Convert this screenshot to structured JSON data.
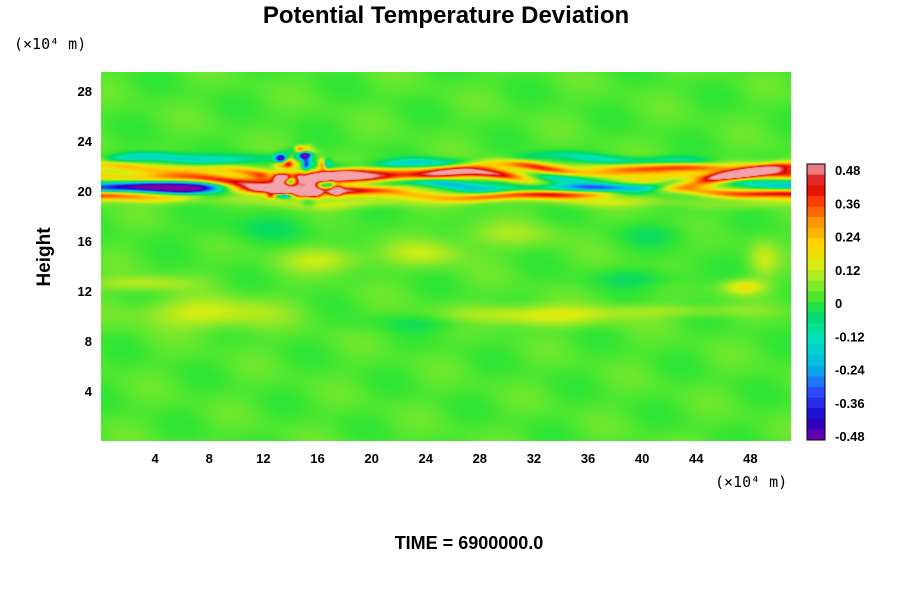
{
  "chart_data": {
    "type": "heatmap",
    "title": "Potential Temperature Deviation",
    "ylabel": "Height",
    "y_unit": "(×10⁴ m)",
    "x_unit": "(×10⁴ m)",
    "time_label": "TIME = 6900000.0",
    "x_ticks": [
      "4",
      "8",
      "12",
      "16",
      "20",
      "24",
      "28",
      "32",
      "36",
      "40",
      "44",
      "48"
    ],
    "y_ticks": [
      "4",
      "8",
      "12",
      "16",
      "20",
      "24",
      "28"
    ],
    "xlim": [
      0,
      51
    ],
    "ylim": [
      0,
      29.5
    ],
    "colorbar": {
      "ticks": [
        "0.48",
        "0.36",
        "0.24",
        "0.12",
        "0",
        "-0.12",
        "-0.24",
        "-0.36",
        "-0.48"
      ],
      "range": [
        -0.52,
        0.52
      ],
      "stops": [
        {
          "v": -0.52,
          "color": "#7a00a8"
        },
        {
          "v": -0.44,
          "color": "#1a00c8"
        },
        {
          "v": -0.34,
          "color": "#2e4cff"
        },
        {
          "v": -0.24,
          "color": "#00bbe8"
        },
        {
          "v": -0.12,
          "color": "#00e6b0"
        },
        {
          "v": -0.05,
          "color": "#00d96a"
        },
        {
          "v": 0.0,
          "color": "#33e633"
        },
        {
          "v": 0.07,
          "color": "#8ee82a"
        },
        {
          "v": 0.14,
          "color": "#d8ee10"
        },
        {
          "v": 0.22,
          "color": "#ffd200"
        },
        {
          "v": 0.3,
          "color": "#ff9500"
        },
        {
          "v": 0.38,
          "color": "#ff3a00"
        },
        {
          "v": 0.44,
          "color": "#d80000"
        },
        {
          "v": 0.52,
          "color": "#f2a2a8"
        }
      ]
    },
    "background_value": 0.02,
    "features": [
      {
        "kind": "band",
        "x0": 0,
        "x1": 51,
        "y": 22.3,
        "amp": 0.8,
        "hw": 0.4,
        "value": -0.2,
        "phase": 0.0
      },
      {
        "kind": "band",
        "x0": 0,
        "x1": 51,
        "y": 21.6,
        "amp": 0.9,
        "hw": 0.4,
        "value": 0.36,
        "phase": 1.3
      },
      {
        "kind": "band",
        "x0": 0,
        "x1": 51,
        "y": 21.0,
        "amp": 0.8,
        "hw": 0.45,
        "value": 0.52,
        "phase": 2.1
      },
      {
        "kind": "band",
        "x0": 0,
        "x1": 51,
        "y": 20.4,
        "amp": 0.7,
        "hw": 0.4,
        "value": -0.44,
        "phase": 3.4
      },
      {
        "kind": "band",
        "x0": 0,
        "x1": 51,
        "y": 19.8,
        "amp": 0.6,
        "hw": 0.35,
        "value": 0.4,
        "phase": 4.6
      },
      {
        "kind": "band",
        "x0": 0,
        "x1": 51,
        "y": 19.2,
        "amp": 0.5,
        "hw": 0.45,
        "value": 0.1,
        "phase": 0.8
      },
      {
        "kind": "blob",
        "x": 18,
        "y": 20.7,
        "rx": 5,
        "ry": 0.8,
        "value": 0.52
      },
      {
        "kind": "blob",
        "x": 34,
        "y": 20.9,
        "rx": 4,
        "ry": 0.5,
        "value": -0.42
      },
      {
        "kind": "blob",
        "x": 6.5,
        "y": 20.4,
        "rx": 3.5,
        "ry": 0.5,
        "value": -0.45
      },
      {
        "kind": "blob",
        "x": 43,
        "y": 21.9,
        "rx": 6,
        "ry": 0.4,
        "value": 0.4
      },
      {
        "kind": "noise",
        "x0": 12,
        "x1": 17.5,
        "y0": 19,
        "y1": 23.5,
        "count": 40,
        "amp": 0.5
      },
      {
        "kind": "blob",
        "x": 16.5,
        "y": 14.5,
        "rx": 3,
        "ry": 1.0,
        "value": 0.1
      },
      {
        "kind": "blob",
        "x": 24,
        "y": 15,
        "rx": 3,
        "ry": 1.0,
        "value": 0.09
      },
      {
        "kind": "blob",
        "x": 47.5,
        "y": 12.3,
        "rx": 1.5,
        "ry": 0.6,
        "value": 0.16
      },
      {
        "kind": "blob",
        "x": 49,
        "y": 14.5,
        "rx": 1.0,
        "ry": 1.4,
        "value": 0.09
      },
      {
        "kind": "blob",
        "x": 3,
        "y": 12.6,
        "rx": 3.5,
        "ry": 0.6,
        "value": 0.09
      },
      {
        "kind": "blob",
        "x": 8,
        "y": 10.2,
        "rx": 5,
        "ry": 1.2,
        "value": 0.12
      },
      {
        "kind": "blob",
        "x": 32,
        "y": 10,
        "rx": 6,
        "ry": 0.8,
        "value": 0.14
      },
      {
        "kind": "blob",
        "x": 43,
        "y": 10.4,
        "rx": 6,
        "ry": 0.5,
        "value": 0.06
      },
      {
        "kind": "blob",
        "x": 25,
        "y": 9.5,
        "rx": 5,
        "ry": 0.7,
        "value": -0.05
      },
      {
        "kind": "blob",
        "x": 40,
        "y": 13,
        "rx": 4,
        "ry": 0.8,
        "value": -0.05
      },
      {
        "kind": "blob",
        "x": 12,
        "y": 17,
        "rx": 5,
        "ry": 1.2,
        "value": -0.04
      },
      {
        "kind": "blob",
        "x": 30,
        "y": 16.5,
        "rx": 4,
        "ry": 1.0,
        "value": 0.06
      },
      {
        "kind": "blob",
        "x": 41,
        "y": 16.5,
        "rx": 3,
        "ry": 1.0,
        "value": -0.04
      }
    ]
  }
}
